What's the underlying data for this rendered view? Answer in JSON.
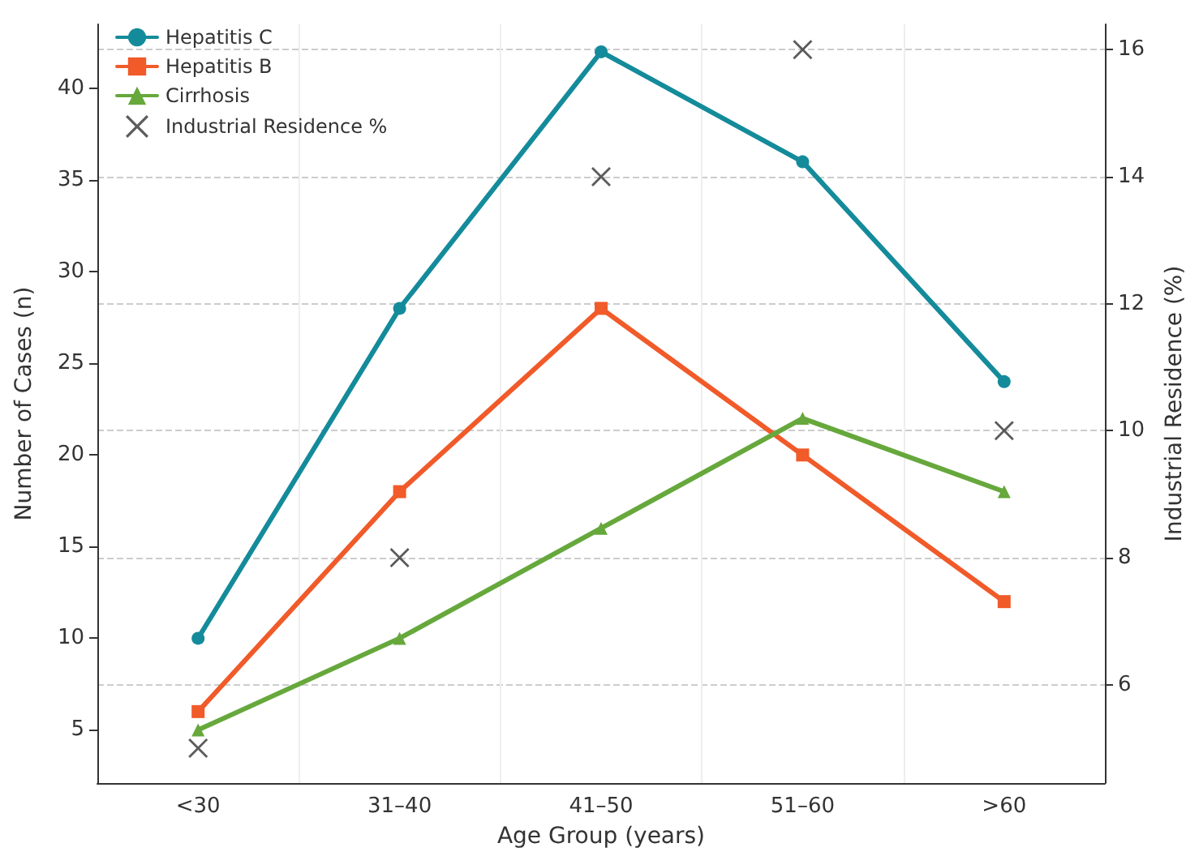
{
  "chart_data": {
    "type": "line",
    "xlabel": "Age Group (years)",
    "ylabel": "Number of Cases (n)",
    "y2label": "Industrial Residence (%)",
    "categories": [
      "<30",
      "31–40",
      "41–50",
      "51–60",
      ">60"
    ],
    "series": [
      {
        "name": "Hepatitis C",
        "color": "#148b9b",
        "values": [
          10,
          28,
          42,
          36,
          24
        ],
        "marker": "circle"
      },
      {
        "name": "Hepatitis B",
        "color": "#f15a29",
        "values": [
          6,
          18,
          28,
          20,
          12
        ],
        "marker": "square"
      },
      {
        "name": "Cirrhosis",
        "color": "#66a83c",
        "values": [
          5,
          10,
          16,
          22,
          18
        ],
        "marker": "triangle"
      },
      {
        "name": "Industrial Residence %",
        "type": "scatter",
        "axis": "y2",
        "color": "#333333",
        "values": [
          5,
          8,
          14,
          16,
          10
        ],
        "marker": "cross"
      }
    ],
    "ylim": [
      2.1,
      43.5
    ],
    "yticks": [
      5,
      10,
      15,
      20,
      25,
      30,
      35,
      40
    ],
    "y2lim": [
      4.45,
      16.4
    ],
    "y2ticks": [
      6,
      8,
      10,
      12,
      14,
      16
    ],
    "grid": true,
    "legend": "top left",
    "line_style": "solid"
  }
}
